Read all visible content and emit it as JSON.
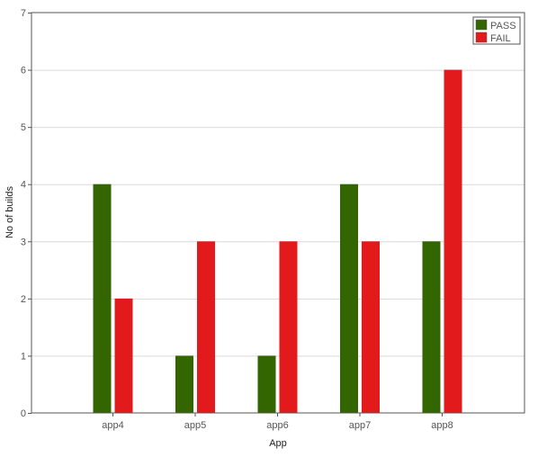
{
  "chart_data": {
    "type": "bar",
    "title": "",
    "xlabel": "App",
    "ylabel": "No of builds",
    "categories": [
      "app4",
      "app5",
      "app6",
      "app7",
      "app8"
    ],
    "series": [
      {
        "name": "PASS",
        "color": "#336600",
        "values": [
          4,
          1,
          1,
          4,
          3
        ]
      },
      {
        "name": "FAIL",
        "color": "#e31a1c",
        "values": [
          2,
          3,
          3,
          3,
          6
        ]
      }
    ],
    "ylim": [
      0,
      7
    ],
    "yticks": [
      "0",
      "1",
      "2",
      "3",
      "4",
      "5",
      "6",
      "7"
    ],
    "grid": "horizontal",
    "legend_position": "top-right"
  }
}
